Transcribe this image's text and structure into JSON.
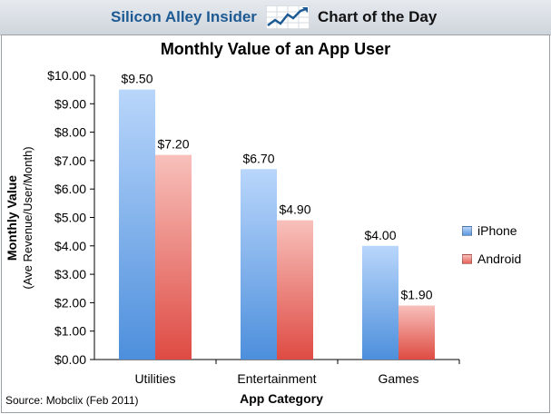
{
  "header": {
    "brand": "Silicon Alley Insider",
    "tagline": "Chart of the Day",
    "logo_icon": "trend-chart-icon"
  },
  "source": "Source: Mobclix (Feb 2011)",
  "colors": {
    "iphone": "#5b98dc",
    "android": "#e8625a",
    "brand": "#1d5a93"
  },
  "chart_data": {
    "type": "bar",
    "title": "Monthly Value of an App User",
    "xlabel": "App Category",
    "ylabel": "Monthly Value",
    "ylabel_sub": "(Ave Revenue/User/Month)",
    "categories": [
      "Utilities",
      "Entertainment",
      "Games"
    ],
    "series": [
      {
        "name": "iPhone",
        "values": [
          9.5,
          6.7,
          4.0
        ],
        "labels": [
          "$9.50",
          "$6.70",
          "$4.00"
        ]
      },
      {
        "name": "Android",
        "values": [
          7.2,
          4.9,
          1.9
        ],
        "labels": [
          "$7.20",
          "$4.90",
          "$1.90"
        ]
      }
    ],
    "ylim": [
      0,
      10
    ],
    "yticks": [
      "$0.00",
      "$1.00",
      "$2.00",
      "$3.00",
      "$4.00",
      "$5.00",
      "$6.00",
      "$7.00",
      "$8.00",
      "$9.00",
      "$10.00"
    ],
    "grid": false,
    "legend_position": "right"
  }
}
